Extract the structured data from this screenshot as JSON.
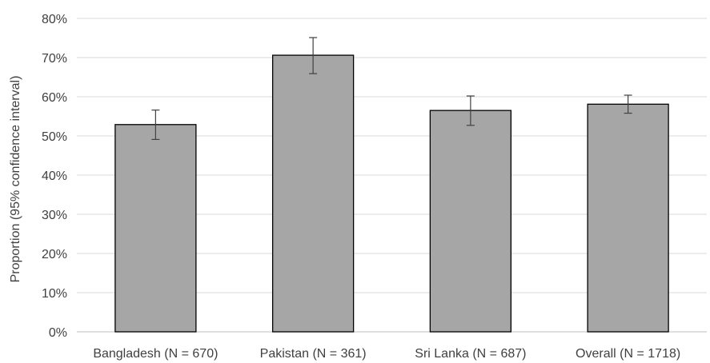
{
  "chart_data": {
    "type": "bar",
    "title": "",
    "xlabel": "",
    "ylabel": "Proportion (95% confidence interval)",
    "categories": [
      "Bangladesh (N = 670)",
      "Pakistan (N = 361)",
      "Sri Lanka (N = 687)",
      "Overall (N = 1718)"
    ],
    "values": [
      0.529,
      0.706,
      0.565,
      0.581
    ],
    "ci_lower": [
      0.491,
      0.659,
      0.527,
      0.558
    ],
    "ci_upper": [
      0.566,
      0.751,
      0.602,
      0.604
    ],
    "ylim": [
      0,
      0.8
    ],
    "yticks": [
      0,
      0.1,
      0.2,
      0.3,
      0.4,
      0.5,
      0.6,
      0.7,
      0.8
    ],
    "ytick_labels": [
      "0%",
      "10%",
      "20%",
      "30%",
      "40%",
      "50%",
      "60%",
      "70%",
      "80%"
    ],
    "grid": "horizontal",
    "legend": "none",
    "colors": {
      "bar_fill": "#a6a6a6",
      "bar_stroke": "#000000",
      "grid": "#d9d9d9",
      "error_bar": "#404040",
      "text": "#404040"
    }
  }
}
